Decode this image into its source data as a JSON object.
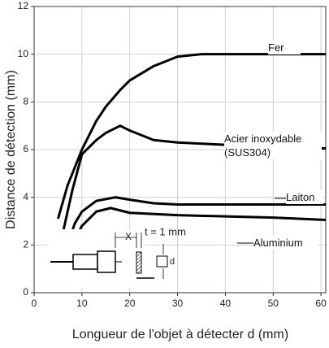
{
  "chart_data": {
    "type": "line",
    "xlabel": "Longueur de l'objet à détecter d (mm)",
    "ylabel": "Distance de détection (mm)",
    "xlim": [
      0,
      61
    ],
    "ylim": [
      0,
      12
    ],
    "xticks": [
      0,
      10,
      20,
      30,
      40,
      50,
      60
    ],
    "yticks": [
      0,
      2,
      4,
      6,
      8,
      10,
      12
    ],
    "grid": true,
    "series": [
      {
        "name": "Fer",
        "color": "#000000",
        "x": [
          5,
          7,
          10,
          13,
          15,
          18,
          20,
          25,
          30,
          35,
          45,
          61
        ],
        "values": [
          3.1,
          4.5,
          6.0,
          7.2,
          7.8,
          8.5,
          8.9,
          9.5,
          9.9,
          10.0,
          10.0,
          10.0
        ]
      },
      {
        "name": "Acier inoxydable (SUS304)",
        "color": "#000000",
        "x": [
          6,
          8,
          10,
          13,
          15,
          18,
          20,
          25,
          30,
          40,
          50,
          61
        ],
        "values": [
          2.5,
          4.3,
          5.8,
          6.4,
          6.7,
          7.0,
          6.8,
          6.4,
          6.3,
          6.2,
          6.1,
          6.05
        ]
      },
      {
        "name": "Laiton",
        "color": "#000000",
        "x": [
          7,
          8.5,
          10,
          13,
          17,
          20,
          25,
          30,
          45,
          61
        ],
        "values": [
          2.0,
          2.9,
          3.4,
          3.85,
          4.0,
          3.9,
          3.75,
          3.7,
          3.7,
          3.7
        ]
      },
      {
        "name": "Aluminium",
        "color": "#000000",
        "x": [
          8,
          9,
          10,
          13,
          16,
          20,
          30,
          40,
          50,
          61
        ],
        "values": [
          1.9,
          2.4,
          2.8,
          3.4,
          3.55,
          3.35,
          3.25,
          3.2,
          3.15,
          3.05
        ]
      }
    ],
    "annotations": [
      "X",
      "t = 1 mm",
      "d"
    ]
  }
}
